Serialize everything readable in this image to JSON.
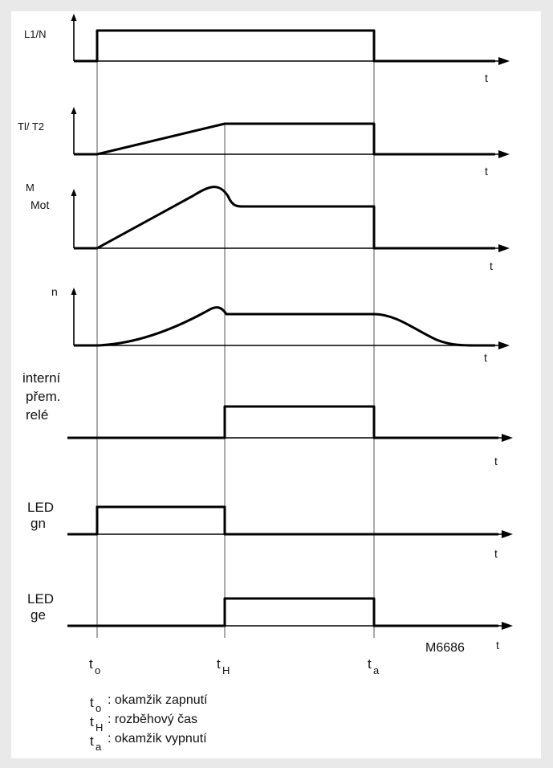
{
  "signals": [
    {
      "id": "l1n",
      "label": "L1/N",
      "axis_label": "t"
    },
    {
      "id": "t1t2",
      "label": "Tl/ T2",
      "axis_label": "t"
    },
    {
      "id": "mmot",
      "label_main": "M",
      "label_sub": "Mot",
      "axis_label": "t"
    },
    {
      "id": "n",
      "label": "n",
      "axis_label": "t"
    },
    {
      "id": "relay",
      "label_lines": [
        "interní",
        "přem.",
        "relé"
      ],
      "axis_label": "t"
    },
    {
      "id": "led_gn",
      "label_lines": [
        "LED",
        "gn"
      ],
      "axis_label": "t"
    },
    {
      "id": "led_ge",
      "label_lines": [
        "LED",
        "ge"
      ],
      "axis_label": "t"
    }
  ],
  "figure_code": "M6686",
  "time_markers": [
    {
      "id": "t0",
      "base": "t",
      "sub": "o"
    },
    {
      "id": "tH",
      "base": "t",
      "sub": "H"
    },
    {
      "id": "ta",
      "base": "t",
      "sub": "a"
    }
  ],
  "legend": [
    {
      "base": "t",
      "sub": "o",
      "text": ": okamžik zapnutí"
    },
    {
      "base": "t",
      "sub": "H",
      "text": ": rozběhový čas"
    },
    {
      "base": "t",
      "sub": "a",
      "text": ": okamžik vypnutí"
    }
  ]
}
